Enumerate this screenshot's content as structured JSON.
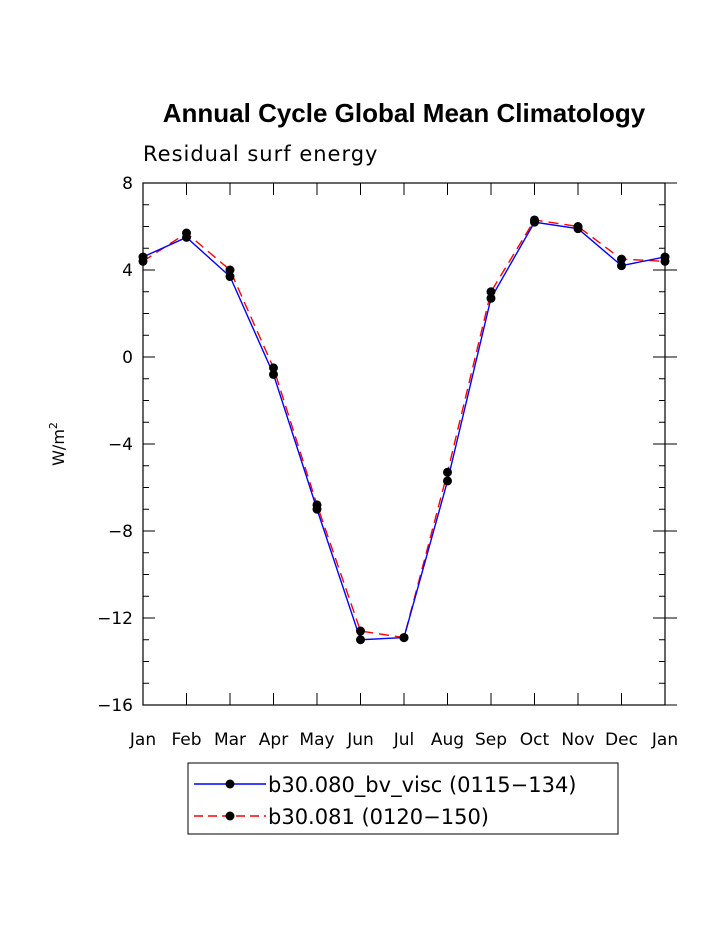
{
  "chart_data": {
    "type": "line",
    "title": "Annual Cycle Global Mean Climatology",
    "subtitle": "Residual surf energy",
    "xlabel": "",
    "ylabel_base": "W/m",
    "ylabel_sup": "2",
    "categories": [
      "Jan",
      "Feb",
      "Mar",
      "Apr",
      "May",
      "Jun",
      "Jul",
      "Aug",
      "Sep",
      "Oct",
      "Nov",
      "Dec",
      "Jan"
    ],
    "ylim": [
      -16,
      8
    ],
    "yticks": [
      8,
      4,
      0,
      -4,
      -8,
      -12,
      -16
    ],
    "ytick_labels": [
      "8",
      "4",
      "0",
      "−4",
      "−8",
      "−12",
      "−16"
    ],
    "grid": false,
    "legend_position": "bottom",
    "series": [
      {
        "name": "b30.080_bv_visc (0115−134)",
        "color": "#0000ff",
        "dash": "solid",
        "marker": "filled-circle",
        "values": [
          4.6,
          5.5,
          3.7,
          -0.8,
          -7.0,
          -13.0,
          -12.9,
          -5.7,
          2.7,
          6.2,
          5.9,
          4.2,
          4.6
        ]
      },
      {
        "name": "b30.081 (0120−150)",
        "color": "#ff0000",
        "dash": "dashed",
        "marker": "filled-circle",
        "values": [
          4.4,
          5.7,
          4.0,
          -0.5,
          -6.8,
          -12.6,
          -12.9,
          -5.3,
          3.0,
          6.3,
          6.0,
          4.5,
          4.4
        ]
      }
    ]
  }
}
